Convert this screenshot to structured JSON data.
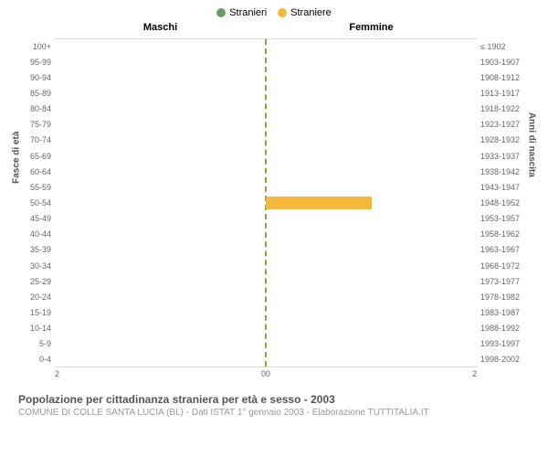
{
  "legend": {
    "series1": {
      "label": "Stranieri",
      "color": "#6a9c6a"
    },
    "series2": {
      "label": "Straniere",
      "color": "#f5b83d"
    }
  },
  "columns": {
    "left": "Maschi",
    "right": "Femmine"
  },
  "axis_labels": {
    "left": "Fasce di età",
    "right": "Anni di nascita"
  },
  "age_bands": [
    "100+",
    "95-99",
    "90-94",
    "85-89",
    "80-84",
    "75-79",
    "70-74",
    "65-69",
    "60-64",
    "55-59",
    "50-54",
    "45-49",
    "40-44",
    "35-39",
    "30-34",
    "25-29",
    "20-24",
    "15-19",
    "10-14",
    "5-9",
    "0-4"
  ],
  "year_bands": [
    "≤ 1902",
    "1903-1907",
    "1908-1912",
    "1913-1917",
    "1918-1922",
    "1923-1927",
    "1928-1932",
    "1933-1937",
    "1938-1942",
    "1943-1947",
    "1948-1952",
    "1953-1957",
    "1958-1962",
    "1963-1967",
    "1968-1972",
    "1973-1977",
    "1978-1982",
    "1983-1987",
    "1988-1992",
    "1993-1997",
    "1998-2002"
  ],
  "x_max": 2,
  "x_ticks": {
    "left": [
      "2",
      "0"
    ],
    "right": [
      "0",
      "2"
    ]
  },
  "bars": {
    "male": [
      0,
      0,
      0,
      0,
      0,
      0,
      0,
      0,
      0,
      0,
      0,
      0,
      0,
      0,
      0,
      0,
      0,
      0,
      0,
      0,
      0
    ],
    "female": [
      0,
      0,
      0,
      0,
      0,
      0,
      0,
      0,
      0,
      0,
      1,
      0,
      0,
      0,
      0,
      0,
      0,
      0,
      0,
      0,
      0
    ]
  },
  "colors": {
    "male_bar": "#6a9c6a",
    "female_bar": "#f5b83d",
    "center_line": "#9a9a4a",
    "background": "#ffffff",
    "text": "#666666"
  },
  "title": "Popolazione per cittadinanza straniera per età e sesso - 2003",
  "subtitle": "COMUNE DI COLLE SANTA LUCIA (BL) - Dati ISTAT 1° gennaio 2003 - Elaborazione TUTTITALIA.IT"
}
